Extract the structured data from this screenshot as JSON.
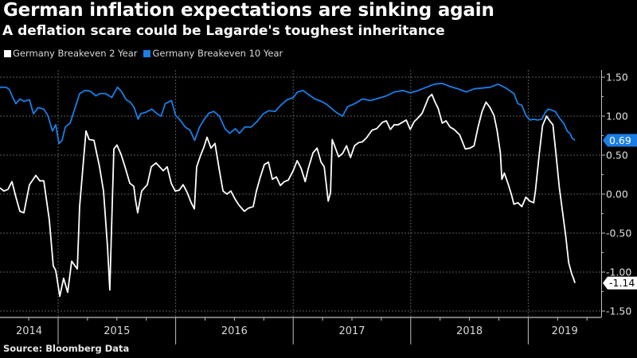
{
  "title": "German inflation expectations are sinking again",
  "subtitle": "A deflation scare could be Lagarde's toughest inheritance",
  "source": "Source: Bloomberg Data",
  "colors": {
    "background": "#000000",
    "series_2y": "#ffffff",
    "series_10y": "#1a7ee6",
    "grid": "#555555",
    "axis": "#bfbfbf"
  },
  "chart_data": {
    "type": "line",
    "title": "German inflation expectations are sinking again",
    "subtitle": "A deflation scare could be Lagarde's toughest inheritance",
    "xlabel": "",
    "ylabel": "",
    "x_range": [
      2014.505,
      2019.605
    ],
    "ylim": [
      -1.5,
      1.5
    ],
    "y_ticks": [
      "1.50",
      "1.00",
      "0.50",
      "0.00",
      "-0.50",
      "-1.00",
      "-1.50"
    ],
    "y_tick_values": [
      1.5,
      1.0,
      0.5,
      0.0,
      -0.5,
      -1.0,
      -1.5
    ],
    "x_year_labels": [
      "2014",
      "2015",
      "2016",
      "2017",
      "2018",
      "2019"
    ],
    "x_year_starts": [
      2015,
      2016,
      2017,
      2018,
      2019
    ],
    "grid": true,
    "legend_position": "top-left",
    "y_axis_side": "right",
    "series": [
      {
        "name": "Germany Breakeven 2 Year",
        "color": "#ffffff",
        "last_value": "-1.14",
        "points": [
          [
            2014.505,
            0.08
          ],
          [
            2014.539,
            0.04
          ],
          [
            2014.573,
            0.06
          ],
          [
            2014.607,
            0.16
          ],
          [
            2014.641,
            -0.04
          ],
          [
            2014.675,
            -0.22
          ],
          [
            2014.709,
            -0.24
          ],
          [
            2014.756,
            0.12
          ],
          [
            2014.81,
            0.24
          ],
          [
            2014.844,
            0.17
          ],
          [
            2014.878,
            0.17
          ],
          [
            2014.925,
            -0.33
          ],
          [
            2014.959,
            -0.92
          ],
          [
            2014.98,
            -0.98
          ],
          [
            2015.014,
            -1.31
          ],
          [
            2015.047,
            -1.08
          ],
          [
            2015.081,
            -1.26
          ],
          [
            2015.115,
            -0.86
          ],
          [
            2015.163,
            -0.96
          ],
          [
            2015.183,
            -0.16
          ],
          [
            2015.217,
            0.45
          ],
          [
            2015.237,
            0.81
          ],
          [
            2015.264,
            0.7
          ],
          [
            2015.305,
            0.69
          ],
          [
            2015.352,
            0.35
          ],
          [
            2015.386,
            0.04
          ],
          [
            2015.42,
            -0.67
          ],
          [
            2015.44,
            -1.23
          ],
          [
            2015.454,
            -0.47
          ],
          [
            2015.474,
            0.58
          ],
          [
            2015.501,
            0.63
          ],
          [
            2015.535,
            0.51
          ],
          [
            2015.569,
            0.35
          ],
          [
            2015.61,
            0.14
          ],
          [
            2015.644,
            0.1
          ],
          [
            2015.657,
            -0.06
          ],
          [
            2015.677,
            -0.24
          ],
          [
            2015.711,
            0.04
          ],
          [
            2015.759,
            0.12
          ],
          [
            2015.793,
            0.35
          ],
          [
            2015.833,
            0.4
          ],
          [
            2015.894,
            0.3
          ],
          [
            2015.928,
            0.35
          ],
          [
            2015.962,
            0.14
          ],
          [
            2015.996,
            0.04
          ],
          [
            2016.03,
            0.05
          ],
          [
            2016.064,
            0.12
          ],
          [
            2016.098,
            0.02
          ],
          [
            2016.132,
            -0.11
          ],
          [
            2016.159,
            -0.19
          ],
          [
            2016.179,
            0.35
          ],
          [
            2016.213,
            0.5
          ],
          [
            2016.24,
            0.6
          ],
          [
            2016.267,
            0.73
          ],
          [
            2016.301,
            0.59
          ],
          [
            2016.335,
            0.65
          ],
          [
            2016.369,
            0.33
          ],
          [
            2016.403,
            0.04
          ],
          [
            2016.436,
            0.0
          ],
          [
            2016.47,
            0.04
          ],
          [
            2016.504,
            -0.06
          ],
          [
            2016.538,
            -0.14
          ],
          [
            2016.585,
            -0.22
          ],
          [
            2016.619,
            -0.18
          ],
          [
            2016.66,
            -0.16
          ],
          [
            2016.687,
            0.04
          ],
          [
            2016.721,
            0.22
          ],
          [
            2016.755,
            0.38
          ],
          [
            2016.789,
            0.41
          ],
          [
            2016.823,
            0.19
          ],
          [
            2016.857,
            0.22
          ],
          [
            2016.891,
            0.11
          ],
          [
            2016.925,
            0.16
          ],
          [
            2016.959,
            0.18
          ],
          [
            2017.0,
            0.3
          ],
          [
            2017.034,
            0.43
          ],
          [
            2017.068,
            0.33
          ],
          [
            2017.102,
            0.16
          ],
          [
            2017.129,
            0.33
          ],
          [
            2017.169,
            0.53
          ],
          [
            2017.203,
            0.59
          ],
          [
            2017.237,
            0.41
          ],
          [
            2017.264,
            0.35
          ],
          [
            2017.298,
            -0.09
          ],
          [
            2017.318,
            0.02
          ],
          [
            2017.332,
            0.7
          ],
          [
            2017.352,
            0.62
          ],
          [
            2017.386,
            0.48
          ],
          [
            2017.42,
            0.52
          ],
          [
            2017.454,
            0.62
          ],
          [
            2017.488,
            0.47
          ],
          [
            2017.522,
            0.62
          ],
          [
            2017.556,
            0.66
          ],
          [
            2017.589,
            0.67
          ],
          [
            2017.623,
            0.72
          ],
          [
            2017.671,
            0.82
          ],
          [
            2017.711,
            0.84
          ],
          [
            2017.759,
            0.92
          ],
          [
            2017.793,
            0.94
          ],
          [
            2017.827,
            0.83
          ],
          [
            2017.86,
            0.89
          ],
          [
            2017.894,
            0.89
          ],
          [
            2017.928,
            0.92
          ],
          [
            2017.962,
            0.95
          ],
          [
            2017.996,
            0.83
          ],
          [
            2018.03,
            0.93
          ],
          [
            2018.064,
            0.98
          ],
          [
            2018.098,
            1.04
          ],
          [
            2018.152,
            1.24
          ],
          [
            2018.18,
            1.28
          ],
          [
            2018.207,
            1.18
          ],
          [
            2018.234,
            1.1
          ],
          [
            2018.268,
            0.91
          ],
          [
            2018.301,
            0.94
          ],
          [
            2018.335,
            0.86
          ],
          [
            2018.369,
            0.83
          ],
          [
            2018.417,
            0.76
          ],
          [
            2018.464,
            0.58
          ],
          [
            2018.505,
            0.59
          ],
          [
            2018.539,
            0.62
          ],
          [
            2018.573,
            0.86
          ],
          [
            2018.607,
            1.06
          ],
          [
            2018.641,
            1.18
          ],
          [
            2018.675,
            1.11
          ],
          [
            2018.709,
            1.01
          ],
          [
            2018.736,
            0.81
          ],
          [
            2018.763,
            0.53
          ],
          [
            2018.776,
            0.19
          ],
          [
            2018.797,
            0.27
          ],
          [
            2018.831,
            0.12
          ],
          [
            2018.858,
            -0.01
          ],
          [
            2018.878,
            -0.13
          ],
          [
            2018.912,
            -0.11
          ],
          [
            2018.946,
            -0.16
          ],
          [
            2018.98,
            -0.04
          ],
          [
            2019.014,
            -0.09
          ],
          [
            2019.047,
            -0.11
          ],
          [
            2019.061,
            0.04
          ],
          [
            2019.095,
            0.53
          ],
          [
            2019.122,
            0.88
          ],
          [
            2019.156,
            1.0
          ],
          [
            2019.183,
            0.94
          ],
          [
            2019.21,
            0.89
          ],
          [
            2019.237,
            0.5
          ],
          [
            2019.264,
            0.09
          ],
          [
            2019.291,
            -0.22
          ],
          [
            2019.318,
            -0.52
          ],
          [
            2019.344,
            -0.88
          ],
          [
            2019.371,
            -1.03
          ],
          [
            2019.385,
            -1.08
          ],
          [
            2019.398,
            -1.14
          ]
        ]
      },
      {
        "name": "Germany Breakeven 10 Year",
        "color": "#1a7ee6",
        "last_value": "0.69",
        "points": [
          [
            2014.505,
            1.37
          ],
          [
            2014.559,
            1.37
          ],
          [
            2014.586,
            1.34
          ],
          [
            2014.614,
            1.24
          ],
          [
            2014.641,
            1.16
          ],
          [
            2014.675,
            1.22
          ],
          [
            2014.709,
            1.19
          ],
          [
            2014.756,
            1.21
          ],
          [
            2014.79,
            1.03
          ],
          [
            2014.83,
            1.11
          ],
          [
            2014.878,
            1.09
          ],
          [
            2014.912,
            1.01
          ],
          [
            2014.952,
            0.81
          ],
          [
            2014.98,
            0.89
          ],
          [
            2015.007,
            0.65
          ],
          [
            2015.034,
            0.69
          ],
          [
            2015.061,
            0.86
          ],
          [
            2015.102,
            0.91
          ],
          [
            2015.149,
            1.13
          ],
          [
            2015.183,
            1.29
          ],
          [
            2015.23,
            1.33
          ],
          [
            2015.274,
            1.32
          ],
          [
            2015.322,
            1.26
          ],
          [
            2015.355,
            1.29
          ],
          [
            2015.403,
            1.29
          ],
          [
            2015.457,
            1.24
          ],
          [
            2015.504,
            1.37
          ],
          [
            2015.538,
            1.32
          ],
          [
            2015.579,
            1.21
          ],
          [
            2015.613,
            1.18
          ],
          [
            2015.647,
            1.11
          ],
          [
            2015.68,
            0.96
          ],
          [
            2015.701,
            1.03
          ],
          [
            2015.748,
            1.05
          ],
          [
            2015.796,
            1.09
          ],
          [
            2015.843,
            1.03
          ],
          [
            2015.877,
            1.0
          ],
          [
            2015.911,
            1.16
          ],
          [
            2015.965,
            1.2
          ],
          [
            2015.999,
            1.01
          ],
          [
            2016.033,
            0.96
          ],
          [
            2016.081,
            0.86
          ],
          [
            2016.122,
            0.82
          ],
          [
            2016.162,
            0.69
          ],
          [
            2016.203,
            0.86
          ],
          [
            2016.244,
            0.96
          ],
          [
            2016.284,
            1.04
          ],
          [
            2016.325,
            1.06
          ],
          [
            2016.372,
            1.0
          ],
          [
            2016.42,
            0.84
          ],
          [
            2016.461,
            0.78
          ],
          [
            2016.508,
            0.84
          ],
          [
            2016.542,
            0.78
          ],
          [
            2016.589,
            0.86
          ],
          [
            2016.643,
            0.86
          ],
          [
            2016.691,
            0.93
          ],
          [
            2016.745,
            1.03
          ],
          [
            2016.792,
            1.07
          ],
          [
            2016.846,
            1.06
          ],
          [
            2016.894,
            1.14
          ],
          [
            2016.948,
            1.21
          ],
          [
            2017.002,
            1.24
          ],
          [
            2017.036,
            1.31
          ],
          [
            2017.083,
            1.33
          ],
          [
            2017.137,
            1.27
          ],
          [
            2017.185,
            1.22
          ],
          [
            2017.239,
            1.19
          ],
          [
            2017.286,
            1.15
          ],
          [
            2017.34,
            1.08
          ],
          [
            2017.374,
            1.04
          ],
          [
            2017.421,
            1.0
          ],
          [
            2017.462,
            1.12
          ],
          [
            2017.523,
            1.16
          ],
          [
            2017.591,
            1.22
          ],
          [
            2017.659,
            1.2
          ],
          [
            2017.726,
            1.23
          ],
          [
            2017.794,
            1.26
          ],
          [
            2017.862,
            1.31
          ],
          [
            2017.93,
            1.33
          ],
          [
            2017.997,
            1.3
          ],
          [
            2018.065,
            1.33
          ],
          [
            2018.133,
            1.37
          ],
          [
            2018.201,
            1.41
          ],
          [
            2018.268,
            1.42
          ],
          [
            2018.336,
            1.38
          ],
          [
            2018.404,
            1.35
          ],
          [
            2018.472,
            1.31
          ],
          [
            2018.539,
            1.35
          ],
          [
            2018.607,
            1.36
          ],
          [
            2018.675,
            1.37
          ],
          [
            2018.743,
            1.41
          ],
          [
            2018.81,
            1.36
          ],
          [
            2018.878,
            1.29
          ],
          [
            2018.912,
            1.16
          ],
          [
            2018.946,
            1.14
          ],
          [
            2018.98,
            1.01
          ],
          [
            2019.014,
            0.95
          ],
          [
            2019.047,
            0.96
          ],
          [
            2019.081,
            0.95
          ],
          [
            2019.115,
            0.96
          ],
          [
            2019.142,
            1.04
          ],
          [
            2019.169,
            1.09
          ],
          [
            2019.196,
            1.08
          ],
          [
            2019.23,
            1.06
          ],
          [
            2019.264,
            0.98
          ],
          [
            2019.305,
            0.9
          ],
          [
            2019.332,
            0.81
          ],
          [
            2019.359,
            0.77
          ],
          [
            2019.372,
            0.72
          ],
          [
            2019.398,
            0.69
          ]
        ]
      }
    ]
  }
}
